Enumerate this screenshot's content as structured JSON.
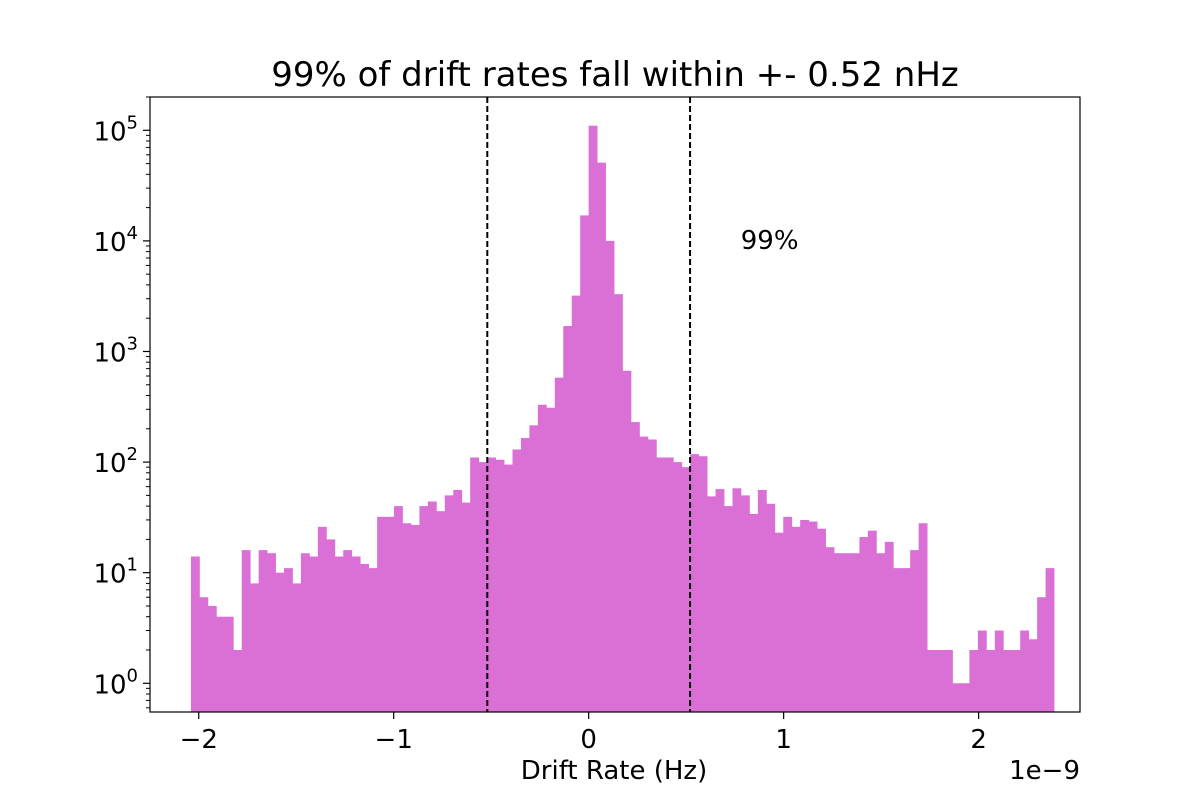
{
  "chart_data": {
    "type": "bar",
    "title": "99% of drift rates fall within +- 0.52 nHz",
    "xlabel": "Drift Rate (Hz)",
    "ylabel": "",
    "x_offset_label": "1e−9",
    "x_scale_factor": 1e-09,
    "yscale": "log",
    "xlim": [
      -2.25,
      2.52
    ],
    "ylim": [
      0.55,
      200000
    ],
    "x_ticks": [
      {
        "value": -2,
        "label": "−2"
      },
      {
        "value": -1,
        "label": "−1"
      },
      {
        "value": 0,
        "label": "0"
      },
      {
        "value": 1,
        "label": "1"
      },
      {
        "value": 2,
        "label": "2"
      }
    ],
    "y_ticks": [
      {
        "value": 1,
        "base": "10",
        "exp": "0"
      },
      {
        "value": 10,
        "base": "10",
        "exp": "1"
      },
      {
        "value": 100,
        "base": "10",
        "exp": "2"
      },
      {
        "value": 1000,
        "base": "10",
        "exp": "3"
      },
      {
        "value": 10000,
        "base": "10",
        "exp": "4"
      },
      {
        "value": 100000,
        "base": "10",
        "exp": "5"
      }
    ],
    "bar_color": "#da70d6",
    "bin_start": -2.04,
    "bin_width": 0.0434,
    "values": [
      14,
      6,
      5,
      4,
      4,
      2,
      16,
      8,
      16,
      15,
      10,
      11,
      8,
      15,
      14,
      26,
      20,
      14,
      16,
      14,
      12,
      11,
      32,
      32,
      40,
      28,
      27,
      40,
      44,
      36,
      50,
      56,
      43,
      110,
      100,
      110,
      105,
      95,
      130,
      165,
      215,
      330,
      310,
      580,
      1700,
      3200,
      17000,
      110000,
      51000,
      10000,
      3300,
      670,
      230,
      170,
      160,
      110,
      110,
      100,
      90,
      118,
      113,
      49,
      57,
      40,
      58,
      50,
      34,
      56,
      42,
      23,
      32,
      26,
      30,
      29,
      25,
      17,
      15,
      15,
      15,
      21,
      24,
      15,
      19,
      11,
      11,
      16,
      28,
      2,
      2,
      2,
      1,
      1,
      2,
      3,
      2,
      3,
      2,
      2,
      3,
      2.5,
      6,
      11
    ],
    "vlines": [
      {
        "x": -0.52,
        "style": "dashed",
        "color": "#000000"
      },
      {
        "x": 0.52,
        "style": "dashed",
        "color": "#000000"
      }
    ],
    "annotations": [
      {
        "text": "99%",
        "x": 0.78,
        "y": 10000
      }
    ]
  }
}
